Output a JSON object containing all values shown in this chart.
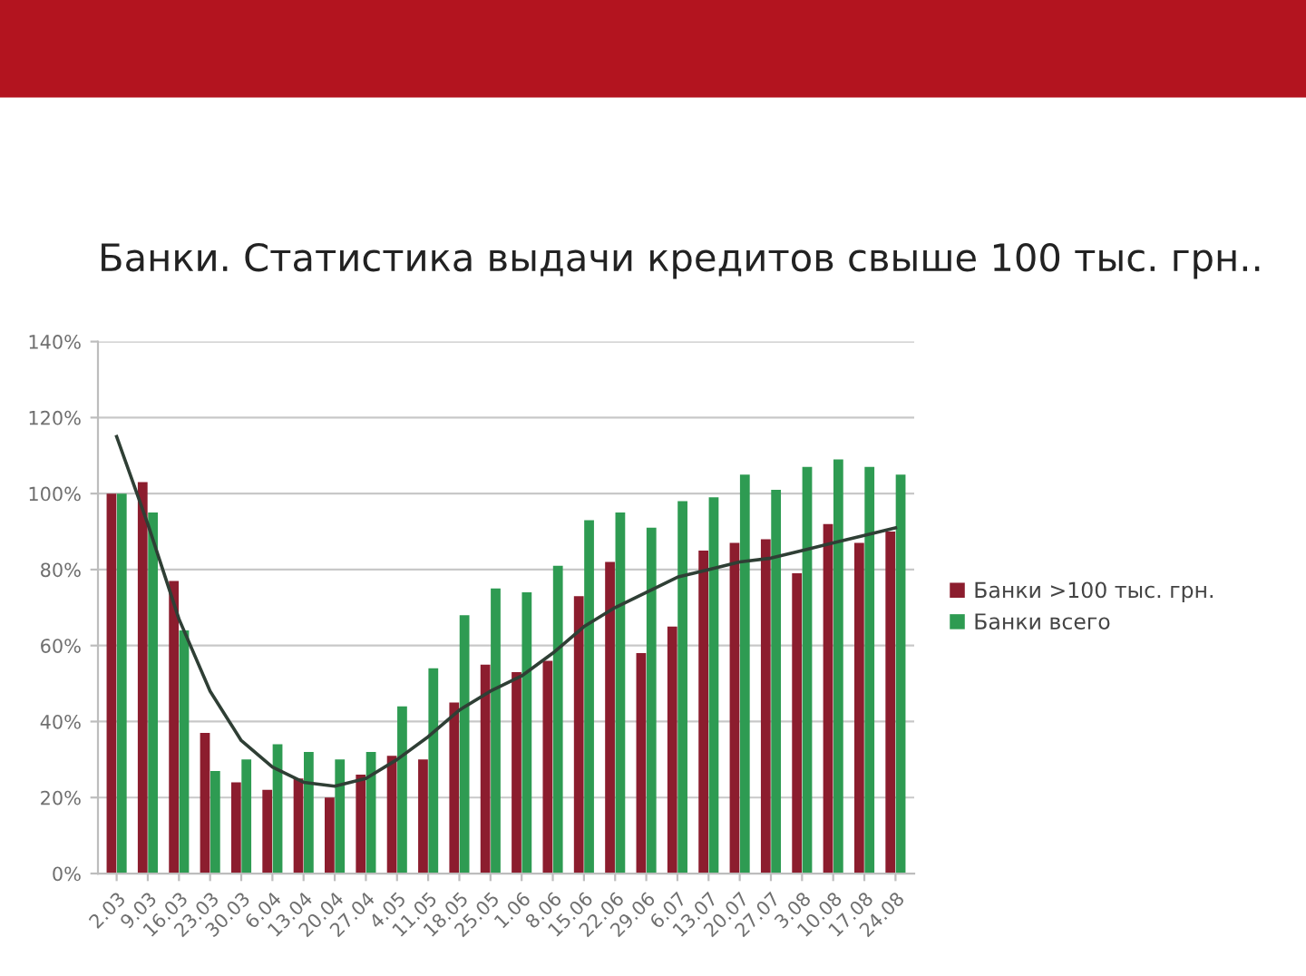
{
  "chart_data": {
    "type": "bar",
    "title": "Банки. Статистика выдачи кредитов свыше 100 тыс. грн..",
    "categories": [
      "2.03",
      "9.03",
      "16.03",
      "23.03",
      "30.03",
      "6.04",
      "13.04",
      "20.04",
      "27.04",
      "4.05",
      "11.05",
      "18.05",
      "25.05",
      "1.06",
      "8.06",
      "15.06",
      "22.06",
      "29.06",
      "6.07",
      "13.07",
      "20.07",
      "27.07",
      "3.08",
      "10.08",
      "17.08",
      "24.08"
    ],
    "series": [
      {
        "name": "Банки >100 тыс. грн.",
        "color": "#8c1d2e",
        "values": [
          100,
          103,
          77,
          37,
          24,
          22,
          25,
          20,
          26,
          31,
          30,
          45,
          55,
          53,
          56,
          73,
          82,
          58,
          65,
          85,
          87,
          88,
          79,
          92,
          87,
          90
        ]
      },
      {
        "name": "Банки всего",
        "color": "#2e9b52",
        "values": [
          100,
          95,
          64,
          27,
          30,
          34,
          32,
          30,
          32,
          44,
          54,
          68,
          75,
          74,
          81,
          93,
          95,
          91,
          98,
          99,
          105,
          101,
          107,
          109,
          107,
          105
        ]
      },
      {
        "type": "line",
        "color": "#2f3f35",
        "values": [
          115,
          92,
          67,
          48,
          35,
          28,
          24,
          23,
          25,
          30,
          36,
          43,
          48,
          52,
          58,
          65,
          70,
          74,
          78,
          80,
          82,
          83,
          85,
          87,
          89,
          91
        ]
      }
    ],
    "ylim": [
      0,
      140
    ],
    "yticks": [
      {
        "value": 0,
        "label": "0%"
      },
      {
        "value": 20,
        "label": "20%"
      },
      {
        "value": 40,
        "label": "40%"
      },
      {
        "value": 60,
        "label": "60%"
      },
      {
        "value": 80,
        "label": "80%"
      },
      {
        "value": 100,
        "label": "100%"
      },
      {
        "value": 120,
        "label": "120%"
      },
      {
        "value": 140,
        "label": "140%"
      }
    ],
    "grid": "y",
    "legend": "right"
  }
}
